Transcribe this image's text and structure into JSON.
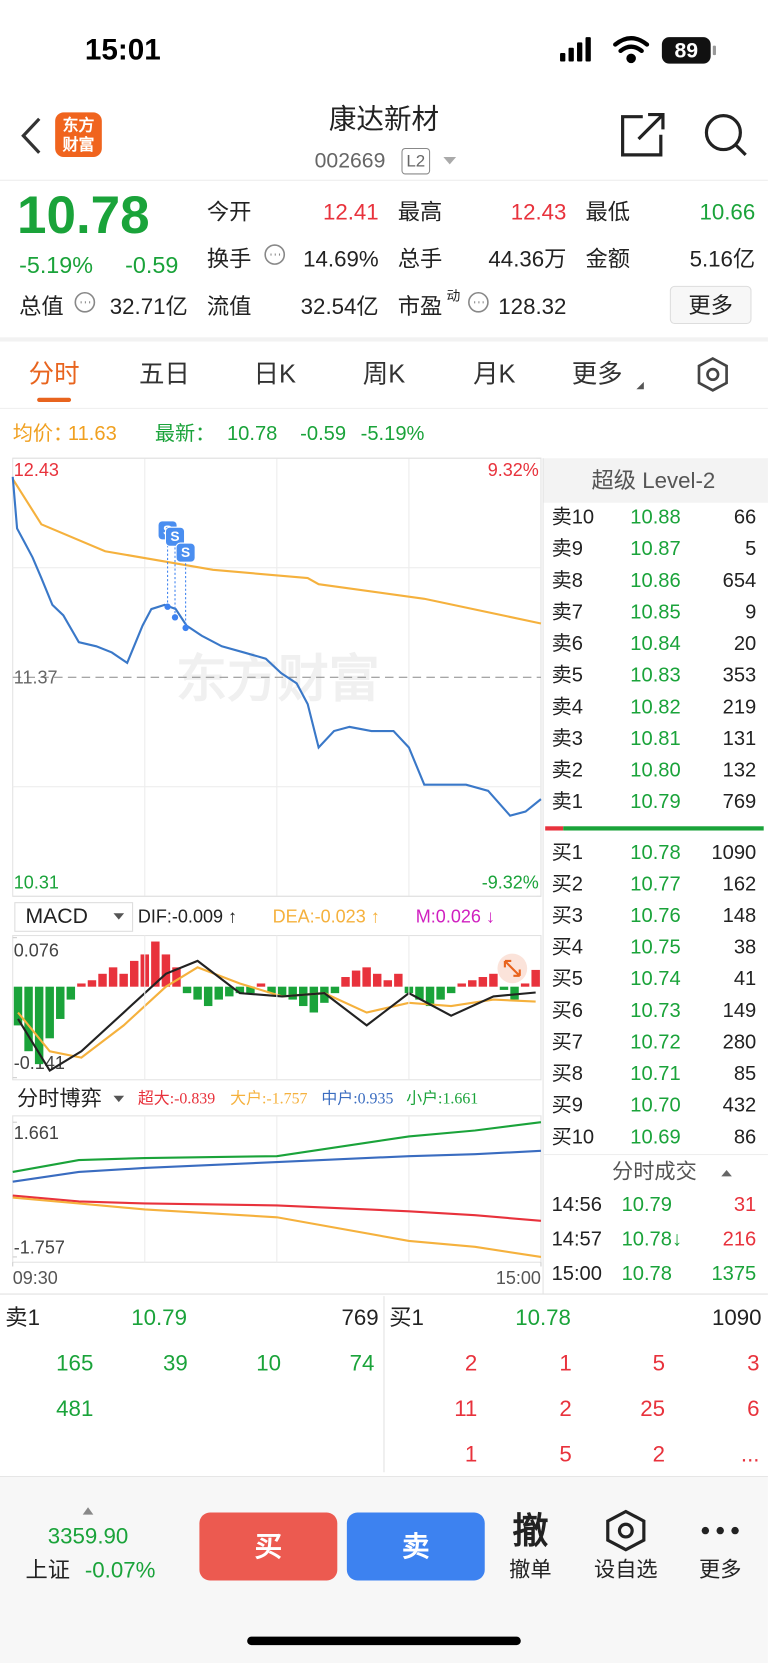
{
  "status_bar": {
    "time": "15:01",
    "battery": "89"
  },
  "header": {
    "logo": [
      "东方",
      "财富"
    ],
    "title": "康达新材",
    "code": "002669",
    "badge": "L2"
  },
  "quote": {
    "price": "10.78",
    "change_pct": "-5.19%",
    "change": "-0.59",
    "total": {
      "label": "总值",
      "value": "32.71亿",
      "info": true
    },
    "grid": [
      [
        {
          "label": "今开",
          "value": "12.41",
          "color": "#e8323c"
        },
        {
          "label": "最高",
          "value": "12.43",
          "color": "#e8323c"
        },
        {
          "label": "最低",
          "value": "10.66",
          "color": "#1aa33a"
        }
      ],
      [
        {
          "label": "换手",
          "value": "14.69%",
          "info": true
        },
        {
          "label": "总手",
          "value": "44.36万"
        },
        {
          "label": "金额",
          "value": "5.16亿"
        }
      ],
      [
        {
          "label": "流值",
          "value": "32.54亿"
        },
        {
          "label": "市盈",
          "sup": "动",
          "value": "128.32",
          "info": true
        }
      ]
    ],
    "more": "更多"
  },
  "tabs": {
    "items": [
      "分时",
      "五日",
      "日K",
      "周K",
      "月K",
      "更多"
    ],
    "active": 0
  },
  "info_row": {
    "avg_label": "均价：",
    "last_label": "最新：",
    "change": "-0.59",
    "change_pct": "-5.19%"
  },
  "chart_data": [
    {
      "type": "line",
      "watermark": "东方财富",
      "markers": [
        "S",
        "S",
        "S"
      ],
      "xlim": [
        0,
        240
      ],
      "xticks": [
        {
          "value": 0,
          "label": "09:30"
        },
        {
          "value": 240,
          "label": "15:00"
        }
      ],
      "ylim": [
        10.31,
        12.43
      ],
      "yticks": [
        12.43,
        11.37,
        10.31
      ],
      "ytick_colors": [
        "#e8323c",
        "#666666",
        "#1aa33a"
      ],
      "y2lim": [
        -9.32,
        9.32
      ],
      "y2ticks": [
        {
          "value": 9.32,
          "label": "9.32%"
        },
        {
          "value": -9.32,
          "label": "-9.32%"
        }
      ],
      "y2tick_colors": [
        "#e8323c",
        "#1aa33a"
      ],
      "series": [
        {
          "color": "#3a78c8",
          "x": [
            0,
            2,
            5,
            9,
            13,
            18,
            23,
            30,
            38,
            45,
            52,
            59,
            63,
            69,
            74,
            79,
            86,
            95,
            105,
            115,
            122,
            129,
            134,
            139,
            146,
            153,
            163,
            173,
            180,
            187,
            197,
            206,
            216,
            226,
            233,
            240
          ],
          "values": [
            12.34,
            12.09,
            12.03,
            11.95,
            11.85,
            11.72,
            11.67,
            11.54,
            11.52,
            11.49,
            11.44,
            11.62,
            11.7,
            11.72,
            11.7,
            11.62,
            11.57,
            11.52,
            11.49,
            11.46,
            11.39,
            11.34,
            11.24,
            11.03,
            11.11,
            11.13,
            11.11,
            11.11,
            11.03,
            10.85,
            10.85,
            10.85,
            10.82,
            10.7,
            10.72,
            10.78
          ]
        },
        {
          "color": "#f5b13d",
          "x": [
            0,
            13,
            42,
            91,
            134,
            139,
            187,
            240
          ],
          "values": [
            12.33,
            12.11,
            11.98,
            11.89,
            11.85,
            11.82,
            11.75,
            11.63
          ]
        }
      ]
    },
    {
      "type": "macd",
      "indicator": "MACD",
      "legend": [
        {
          "text": "DIF:-0.009 ↑",
          "color": "#222222"
        },
        {
          "text": "DEA:-0.023 ↑",
          "color": "#f5b13d"
        },
        {
          "text": "M:0.026 ↓",
          "color": "#d020c0"
        }
      ],
      "ylim": [
        -0.141,
        0.076
      ],
      "yticks": [
        0.076,
        -0.141
      ],
      "up_color": "#e8323c",
      "down_color": "#1aa33a",
      "values": [
        -0.06,
        -0.1,
        -0.12,
        -0.08,
        -0.05,
        -0.02,
        0.005,
        0.01,
        0.02,
        0.03,
        0.02,
        0.04,
        0.05,
        0.07,
        0.05,
        0.03,
        -0.01,
        -0.02,
        -0.03,
        -0.02,
        -0.015,
        -0.01,
        -0.01,
        0.005,
        -0.01,
        -0.015,
        -0.02,
        -0.03,
        -0.04,
        -0.025,
        -0.01,
        0.015,
        0.025,
        0.03,
        0.02,
        0.01,
        0.02,
        -0.01,
        -0.02,
        -0.03,
        -0.02,
        -0.01,
        0.005,
        0.01,
        0.015,
        0.02,
        -0.005,
        -0.02,
        0.005,
        0.026
      ],
      "series": [
        {
          "color": "#222222",
          "x": [
            0,
            3,
            6,
            10,
            14,
            17,
            21,
            25,
            29,
            33,
            37,
            41,
            45,
            49
          ],
          "values": [
            -0.05,
            -0.13,
            -0.1,
            -0.04,
            0.02,
            0.04,
            -0.01,
            -0.015,
            -0.01,
            -0.06,
            -0.01,
            -0.045,
            -0.015,
            -0.009
          ]
        },
        {
          "color": "#f5b13d",
          "x": [
            0,
            3,
            6,
            10,
            14,
            17,
            21,
            25,
            29,
            33,
            37,
            41,
            45,
            49
          ],
          "values": [
            -0.04,
            -0.1,
            -0.11,
            -0.06,
            0.0,
            0.03,
            0.005,
            -0.015,
            -0.01,
            -0.04,
            -0.025,
            -0.03,
            -0.02,
            -0.023
          ]
        }
      ]
    },
    {
      "type": "line",
      "title": "分时博弈",
      "xlim": [
        0,
        240
      ],
      "ylim": [
        -1.757,
        1.661
      ],
      "yticks": [
        1.661,
        -1.757
      ],
      "series": [
        {
          "name": "超大:-0.839",
          "color": "#e8323c",
          "x": [
            0,
            30,
            60,
            120,
            180,
            210,
            240
          ],
          "values": [
            -0.2,
            -0.35,
            -0.4,
            -0.45,
            -0.6,
            -0.7,
            -0.839
          ]
        },
        {
          "name": "大户:-1.757",
          "color": "#f5b13d",
          "x": [
            0,
            30,
            60,
            120,
            180,
            210,
            240
          ],
          "values": [
            -0.25,
            -0.4,
            -0.55,
            -0.75,
            -1.35,
            -1.5,
            -1.757
          ]
        },
        {
          "name": "中户:0.935",
          "color": "#3a6cc0",
          "x": [
            0,
            30,
            60,
            120,
            180,
            210,
            240
          ],
          "values": [
            0.15,
            0.4,
            0.5,
            0.65,
            0.8,
            0.85,
            0.935
          ]
        },
        {
          "name": "小户:1.661",
          "color": "#1aa33a",
          "x": [
            0,
            30,
            60,
            120,
            180,
            210,
            240
          ],
          "values": [
            0.4,
            0.7,
            0.75,
            0.8,
            1.3,
            1.45,
            1.661
          ]
        }
      ]
    }
  ],
  "order_book": {
    "title": "超级 Level-2",
    "price_color": "#1aa33a",
    "asks": [
      [
        "卖10",
        "10.88",
        "66"
      ],
      [
        "卖9",
        "10.87",
        "5"
      ],
      [
        "卖8",
        "10.86",
        "654"
      ],
      [
        "卖7",
        "10.85",
        "9"
      ],
      [
        "卖6",
        "10.84",
        "20"
      ],
      [
        "卖5",
        "10.83",
        "353"
      ],
      [
        "卖4",
        "10.82",
        "219"
      ],
      [
        "卖3",
        "10.81",
        "131"
      ],
      [
        "卖2",
        "10.80",
        "132"
      ],
      [
        "卖1",
        "10.79",
        "769"
      ]
    ],
    "bids": [
      [
        "买1",
        "10.78",
        "1090"
      ],
      [
        "买2",
        "10.77",
        "162"
      ],
      [
        "买3",
        "10.76",
        "148"
      ],
      [
        "买4",
        "10.75",
        "38"
      ],
      [
        "买5",
        "10.74",
        "41"
      ],
      [
        "买6",
        "10.73",
        "149"
      ],
      [
        "买7",
        "10.72",
        "280"
      ],
      [
        "买8",
        "10.71",
        "85"
      ],
      [
        "买9",
        "10.70",
        "432"
      ],
      [
        "买10",
        "10.69",
        "86"
      ]
    ]
  },
  "trades": {
    "title": "分时成交",
    "rows": [
      {
        "time": "14:56",
        "price": "10.79",
        "volume": "31",
        "volume_color": "#e8323c"
      },
      {
        "time": "14:57",
        "price": "10.78↓",
        "volume": "216",
        "volume_color": "#e8323c"
      },
      {
        "time": "15:00",
        "price": "10.78",
        "volume": "1375",
        "volume_color": "#1aa33a"
      }
    ]
  },
  "detail": {
    "sell": [
      "卖1",
      "10.79",
      "769"
    ],
    "buy": [
      "买1",
      "10.78",
      "1090"
    ],
    "sell_queue": [
      [
        "165",
        "39",
        "10",
        "74"
      ],
      [
        "481"
      ]
    ],
    "buy_queue": [
      [
        "2",
        "1",
        "5",
        "3"
      ],
      [
        "11",
        "2",
        "25",
        "6"
      ],
      [
        "1",
        "5",
        "2",
        "..."
      ]
    ]
  },
  "bottom_bar": {
    "index_value": "3359.90",
    "index_name": "上证",
    "index_change": "-0.07%",
    "buy": "买",
    "sell": "卖",
    "cancel_icon": "撤",
    "cancel": "撤单",
    "watch": "设自选",
    "more": "更多"
  }
}
